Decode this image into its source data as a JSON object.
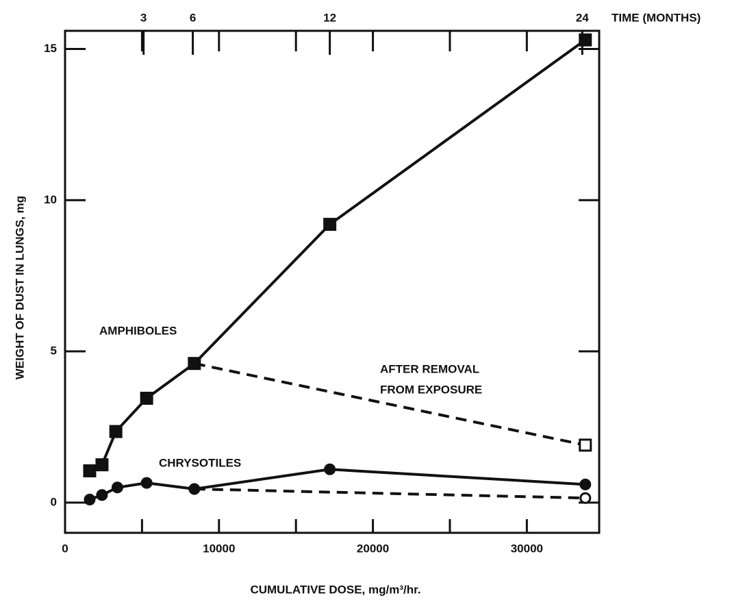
{
  "chart_data": {
    "type": "line",
    "xlabel": "CUMULATIVE DOSE, mg/m³/hr.",
    "ylabel": "WEIGHT OF DUST IN LUNGS, mg",
    "x2label": "TIME (MONTHS)",
    "xlim": [
      0,
      34700
    ],
    "ylim": [
      -1,
      15.6
    ],
    "xticks": [
      0,
      10000,
      20000,
      30000
    ],
    "xminorticks": [
      5000,
      15000,
      25000
    ],
    "yticks": [
      0,
      5,
      10,
      15
    ],
    "x2ticks": [
      {
        "value": 5100,
        "label": "3"
      },
      {
        "value": 8300,
        "label": "6"
      },
      {
        "value": 17200,
        "label": "12"
      },
      {
        "value": 33600,
        "label": "24"
      }
    ],
    "series": [
      {
        "color": "#111",
        "dashed": false,
        "marker": "square-filled",
        "x": [
          1600,
          2400,
          3300,
          5300,
          8400,
          17200,
          33800
        ],
        "values": [
          1.05,
          1.25,
          2.35,
          3.45,
          4.6,
          9.2,
          15.3
        ]
      },
      {
        "color": "#111",
        "dashed": true,
        "marker": "square-open",
        "x": [
          8400,
          33800
        ],
        "values": [
          4.6,
          1.9
        ]
      },
      {
        "color": "#111",
        "dashed": false,
        "marker": "circle-filled",
        "x": [
          1600,
          2400,
          3400,
          5300,
          8400,
          17200,
          33800
        ],
        "values": [
          0.1,
          0.25,
          0.5,
          0.65,
          0.45,
          1.1,
          0.6
        ]
      },
      {
        "color": "#111",
        "dashed": true,
        "marker": "circle-open",
        "x": [
          8400,
          33800
        ],
        "values": [
          0.45,
          0.15
        ]
      }
    ],
    "annotations": [
      {
        "lines": [
          "AMPHIBOLES"
        ]
      },
      {
        "lines": [
          "AFTER REMOVAL",
          "FROM EXPOSURE"
        ]
      },
      {
        "lines": [
          "CHRYSOTILES"
        ]
      }
    ]
  }
}
